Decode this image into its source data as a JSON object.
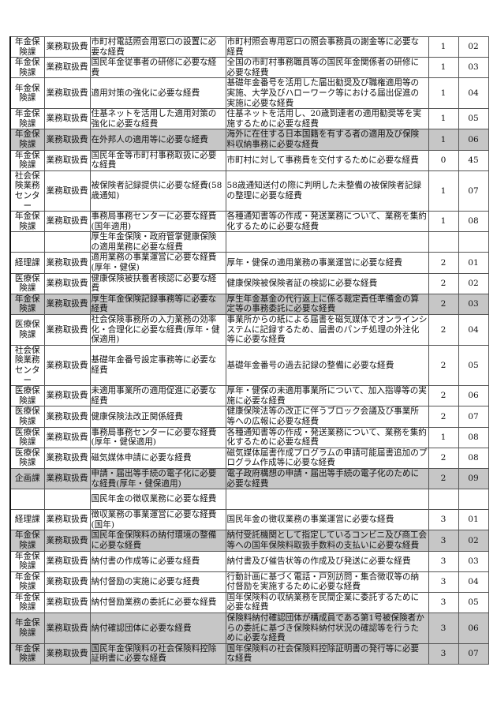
{
  "rows": [
    {
      "dept": "年金保険課",
      "category": "業務取扱費",
      "item": "市町村電話照会用窓口の設置に必要な経費",
      "description": "市町村照会専用窓口の照会事務員の謝金等に必要な経費",
      "code1": "1",
      "code2": "02",
      "highlighted": false
    },
    {
      "dept": "年金保険課",
      "category": "業務取扱費",
      "item": "国民年金従事者の研修に必要な経費",
      "description": "全国の市町村事務職員等の国民年金関係者の研修に必要な経費",
      "code1": "1",
      "code2": "03",
      "highlighted": false
    },
    {
      "dept": "年金保険課",
      "category": "業務取扱費",
      "item": "適用対策の強化に必要な経費",
      "description": "基礎年金番号を活用した届出勧奨及び職権適用等の実施、大学及びハローワーク等における届出促進の実施に必要な経費",
      "code1": "1",
      "code2": "04",
      "highlighted": false
    },
    {
      "dept": "年金保険課",
      "category": "業務取扱費",
      "item": "住基ネットを活用した適用対策の強化に必要な経費",
      "description": "住基ネットを活用し、20歳到達者の適用勧奨等を実施するために必要な経費",
      "code1": "1",
      "code2": "05",
      "highlighted": false
    },
    {
      "dept": "年金保険課",
      "category": "業務取扱費",
      "item": "在外邦人の適用等に必要な経費",
      "description": "海外に在住する日本国籍を有する者の適用及び保険料収納事務に必要な経費",
      "code1": "1",
      "code2": "06",
      "highlighted": true
    },
    {
      "dept": "年金保険課",
      "category": "業務取扱費",
      "item": "国民年金等市町村事務取扱に必要な経費",
      "description": "市町村に対して事務費を交付するために必要な経費",
      "code1": "0",
      "code2": "45",
      "highlighted": false
    },
    {
      "dept": "社会保険業務センター",
      "category": "業務取扱費",
      "item": "被保険者記録提供に必要な経費(58歳通知)",
      "description": "58歳通知送付の際に判明した未整備の被保険者記録の整理に必要な経費",
      "code1": "1",
      "code2": "07",
      "highlighted": false
    },
    {
      "dept": "年金保険課",
      "category": "業務取扱費",
      "item": "事務局事務センターに必要な経費(国年適用)",
      "description": "各種通知書等の作成・発送業務について、業務を集約化するために必要な経費",
      "code1": "1",
      "code2": "08",
      "highlighted": false
    },
    {
      "dept": "",
      "category": "",
      "item": "厚生年金保険・政府管掌健康保険の適用業務に必要な経費",
      "description": "",
      "code1": "",
      "code2": "",
      "highlighted": false
    },
    {
      "dept": "経理課",
      "category": "業務取扱費",
      "item": "適用業務の事業運営に必要な経費(厚年・健保)",
      "description": "厚年・健保の適用業務の事業運営に必要な経費",
      "code1": "2",
      "code2": "01",
      "highlighted": false
    },
    {
      "dept": "医療保険課",
      "category": "業務取扱費",
      "item": "健康保険被扶養者検認に必要な経費",
      "description": "健康保険被保険者証の検認に必要な経費",
      "code1": "2",
      "code2": "02",
      "highlighted": false
    },
    {
      "dept": "年金保険課",
      "category": "業務取扱費",
      "item": "厚生年金保険記録事務等に必要な経費",
      "description": "厚生年金基金の代行返上に係る裁定責任準備金の算定等の事務委託に必要な経費",
      "code1": "2",
      "code2": "03",
      "highlighted": true
    },
    {
      "dept": "医療保険課",
      "category": "業務取扱費",
      "item": "社会保険事務所の入力業務の効率化・合理化に必要な経費(厚年・健保適用)",
      "description": "事業所からの紙による届書を磁気媒体でオンラインシステムに記録するため、届書のパンチ処理の外注化等に必要な経費",
      "code1": "2",
      "code2": "04",
      "highlighted": false
    },
    {
      "dept": "社会保険業務センター",
      "category": "業務取扱費",
      "item": "基礎年金番号設定事務等に必要な経費",
      "description": "基礎年金番号の過去記録の整備に必要な経費",
      "code1": "2",
      "code2": "05",
      "highlighted": false
    },
    {
      "dept": "医療保険課",
      "category": "業務取扱費",
      "item": "未適用事業所の適用促進に必要な経費",
      "description": "厚年・健保の未適用事業所について、加入指導等の実施に必要な経費",
      "code1": "2",
      "code2": "06",
      "highlighted": false
    },
    {
      "dept": "医療保険課",
      "category": "業務取扱費",
      "item": "健康保険法改正関係経費",
      "description": "健康保険法等の改正に伴うブロック会議及び事業所等への広報に必要な経費",
      "code1": "2",
      "code2": "07",
      "highlighted": false
    },
    {
      "dept": "医療保険課",
      "category": "業務取扱費",
      "item": "事務局事務センターに必要な経費(厚年・健保適用)",
      "description": "各種通知書等の作成・発送業務について、業務を集約化するために必要な経費",
      "code1": "1",
      "code2": "08",
      "highlighted": false
    },
    {
      "dept": "医療保険課",
      "category": "業務取扱費",
      "item": "磁気媒体申請に必要な経費",
      "description": "磁気媒体届書作成プログラムの申請可能届書追加のプログラム作成等に必要な経費",
      "code1": "2",
      "code2": "08",
      "highlighted": false
    },
    {
      "dept": "企画課",
      "category": "業務取扱費",
      "item": "申請・届出等手続の電子化に必要な経費(厚年・健保適用)",
      "description": "電子政府構想の申請・届出等手続の電子化のために必要な経費",
      "code1": "2",
      "code2": "09",
      "highlighted": true
    },
    {
      "dept": "",
      "category": "",
      "item": "国民年金の徴収業務に必要な経費",
      "description": "",
      "code1": "",
      "code2": "",
      "highlighted": false
    },
    {
      "dept": "経理課",
      "category": "業務取扱費",
      "item": "徴収業務の事業運営に必要な経費(国年)",
      "description": "国民年金の徴収業務の事業運営に必要な経費",
      "code1": "3",
      "code2": "01",
      "highlighted": false
    },
    {
      "dept": "年金保険課",
      "category": "業務取扱費",
      "item": "国民年金保険料の納付環境の整備に必要な経費",
      "description": "納付受託機関として指定しているコンビニ及び商工会等への国年保険料取扱手数料の支払いに必要な経費",
      "code1": "3",
      "code2": "02",
      "highlighted": true
    },
    {
      "dept": "年金保険課",
      "category": "業務取扱費",
      "item": "納付書の作成等に必要な経費",
      "description": "納付書及び催告状等の作成及び発送に必要な経費",
      "code1": "3",
      "code2": "03",
      "highlighted": false
    },
    {
      "dept": "年金保険課",
      "category": "業務取扱費",
      "item": "納付督励の実施に必要な経費",
      "description": "行動計画に基づく電話・戸別訪問・集合徴収等の納付督励を実施するために必要な経費",
      "code1": "3",
      "code2": "04",
      "highlighted": false
    },
    {
      "dept": "年金保険課",
      "category": "業務取扱費",
      "item": "納付督励業務の委託に必要な経費",
      "description": "国年保険料の収納業務を民間企業に委託するために必要な経費",
      "code1": "3",
      "code2": "05",
      "highlighted": false
    },
    {
      "dept": "年金保険課",
      "category": "業務取扱費",
      "item": "納付確認団体に必要な経費",
      "description": "保険料納付確認団体が構成員である第1号被保険者からの委託に基づき保険料納付状況の確認等を行うために必要な経費",
      "code1": "3",
      "code2": "06",
      "highlighted": true
    },
    {
      "dept": "年金保険課",
      "category": "業務取扱費",
      "item": "国民年金保険料の社会保険料控除証明書に必要な経費",
      "description": "国年保険料の社会保険料控除証明書の発行等に必要な経費",
      "code1": "3",
      "code2": "07",
      "highlighted": true
    }
  ],
  "colors": {
    "highlight": "#c6c6c6",
    "border": "#555555"
  }
}
